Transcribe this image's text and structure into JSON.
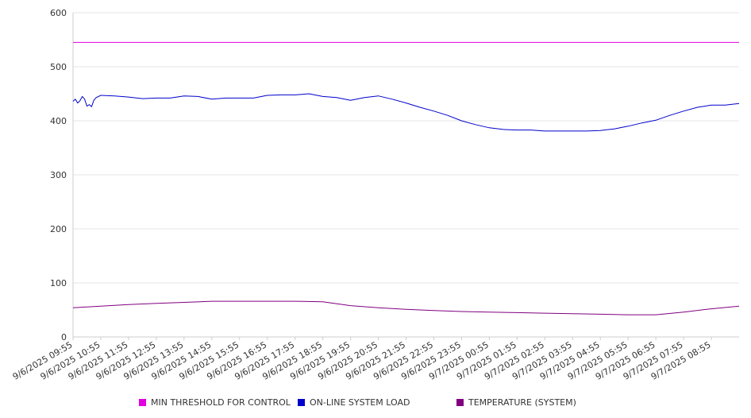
{
  "chart_data": {
    "type": "line",
    "title": "",
    "xlabel": "",
    "ylabel": "",
    "ylim": [
      0,
      600
    ],
    "yticks": [
      0,
      100,
      200,
      300,
      400,
      500,
      600
    ],
    "grid": true,
    "legend": "bottom",
    "x_tick_labels": [
      "9/6/2025 09:55",
      "9/6/2025 10:55",
      "9/6/2025 11:55",
      "9/6/2025 12:55",
      "9/6/2025 13:55",
      "9/6/2025 14:55",
      "9/6/2025 15:55",
      "9/6/2025 16:55",
      "9/6/2025 17:55",
      "9/6/2025 18:55",
      "9/6/2025 19:55",
      "9/6/2025 20:55",
      "9/6/2025 21:55",
      "9/6/2025 22:55",
      "9/6/2025 23:55",
      "9/7/2025 00:55",
      "9/7/2025 01:55",
      "9/7/2025 02:55",
      "9/7/2025 03:55",
      "9/7/2025 04:55",
      "9/7/2025 05:55",
      "9/7/2025 06:55",
      "9/7/2025 07:55",
      "9/7/2025 08:55"
    ],
    "x_start": "9/6/2025 09:55",
    "x_end": "9/7/2025 09:55",
    "series": [
      {
        "name": "MIN THRESHOLD FOR CONTROL",
        "color": "#e000e0",
        "points": [
          [
            "9/6/2025 09:55",
            545
          ],
          [
            "9/7/2025 09:55",
            545
          ]
        ]
      },
      {
        "name": "ON-LINE SYSTEM LOAD",
        "color": "#0000cc",
        "points": [
          [
            "9/6/2025 09:55",
            436
          ],
          [
            "9/6/2025 10:00",
            440
          ],
          [
            "9/6/2025 10:05",
            433
          ],
          [
            "9/6/2025 10:10",
            437
          ],
          [
            "9/6/2025 10:15",
            445
          ],
          [
            "9/6/2025 10:20",
            440
          ],
          [
            "9/6/2025 10:25",
            427
          ],
          [
            "9/6/2025 10:30",
            430
          ],
          [
            "9/6/2025 10:35",
            426
          ],
          [
            "9/6/2025 10:40",
            438
          ],
          [
            "9/6/2025 10:45",
            443
          ],
          [
            "9/6/2025 10:55",
            447
          ],
          [
            "9/6/2025 11:25",
            446
          ],
          [
            "9/6/2025 11:55",
            444
          ],
          [
            "9/6/2025 12:25",
            441
          ],
          [
            "9/6/2025 12:55",
            442
          ],
          [
            "9/6/2025 13:25",
            442
          ],
          [
            "9/6/2025 13:55",
            446
          ],
          [
            "9/6/2025 14:25",
            445
          ],
          [
            "9/6/2025 14:55",
            440
          ],
          [
            "9/6/2025 15:25",
            442
          ],
          [
            "9/6/2025 15:55",
            442
          ],
          [
            "9/6/2025 16:25",
            442
          ],
          [
            "9/6/2025 16:55",
            447
          ],
          [
            "9/6/2025 17:25",
            448
          ],
          [
            "9/6/2025 17:55",
            448
          ],
          [
            "9/6/2025 18:25",
            450
          ],
          [
            "9/6/2025 18:55",
            445
          ],
          [
            "9/6/2025 19:25",
            443
          ],
          [
            "9/6/2025 19:55",
            438
          ],
          [
            "9/6/2025 20:25",
            443
          ],
          [
            "9/6/2025 20:55",
            446
          ],
          [
            "9/6/2025 21:25",
            440
          ],
          [
            "9/6/2025 21:55",
            433
          ],
          [
            "9/6/2025 22:25",
            425
          ],
          [
            "9/6/2025 22:55",
            418
          ],
          [
            "9/6/2025 23:25",
            410
          ],
          [
            "9/6/2025 23:55",
            400
          ],
          [
            "9/7/2025 00:25",
            393
          ],
          [
            "9/7/2025 00:55",
            387
          ],
          [
            "9/7/2025 01:25",
            384
          ],
          [
            "9/7/2025 01:55",
            383
          ],
          [
            "9/7/2025 02:25",
            383
          ],
          [
            "9/7/2025 02:55",
            381
          ],
          [
            "9/7/2025 03:25",
            381
          ],
          [
            "9/7/2025 03:55",
            381
          ],
          [
            "9/7/2025 04:25",
            381
          ],
          [
            "9/7/2025 04:55",
            382
          ],
          [
            "9/7/2025 05:25",
            385
          ],
          [
            "9/7/2025 05:55",
            390
          ],
          [
            "9/7/2025 06:25",
            396
          ],
          [
            "9/7/2025 06:55",
            401
          ],
          [
            "9/7/2025 07:25",
            410
          ],
          [
            "9/7/2025 07:55",
            418
          ],
          [
            "9/7/2025 08:25",
            425
          ],
          [
            "9/7/2025 08:55",
            429
          ],
          [
            "9/7/2025 09:25",
            429
          ],
          [
            "9/7/2025 09:55",
            432
          ]
        ]
      },
      {
        "name": "TEMPERATURE (SYSTEM)",
        "color": "#800080",
        "points": [
          [
            "9/6/2025 09:55",
            54
          ],
          [
            "9/6/2025 10:55",
            57
          ],
          [
            "9/6/2025 11:55",
            60
          ],
          [
            "9/6/2025 12:55",
            62
          ],
          [
            "9/6/2025 13:55",
            64
          ],
          [
            "9/6/2025 14:55",
            66
          ],
          [
            "9/6/2025 15:55",
            66
          ],
          [
            "9/6/2025 16:55",
            66
          ],
          [
            "9/6/2025 17:55",
            66
          ],
          [
            "9/6/2025 18:55",
            65
          ],
          [
            "9/6/2025 19:55",
            58
          ],
          [
            "9/6/2025 20:55",
            54
          ],
          [
            "9/6/2025 21:55",
            51
          ],
          [
            "9/6/2025 22:55",
            49
          ],
          [
            "9/6/2025 23:55",
            47
          ],
          [
            "9/7/2025 00:55",
            46
          ],
          [
            "9/7/2025 01:55",
            45
          ],
          [
            "9/7/2025 02:55",
            44
          ],
          [
            "9/7/2025 03:55",
            43
          ],
          [
            "9/7/2025 04:55",
            42
          ],
          [
            "9/7/2025 05:55",
            41
          ],
          [
            "9/7/2025 06:55",
            41
          ],
          [
            "9/7/2025 07:55",
            46
          ],
          [
            "9/7/2025 08:55",
            52
          ],
          [
            "9/7/2025 09:55",
            57
          ]
        ]
      }
    ]
  }
}
